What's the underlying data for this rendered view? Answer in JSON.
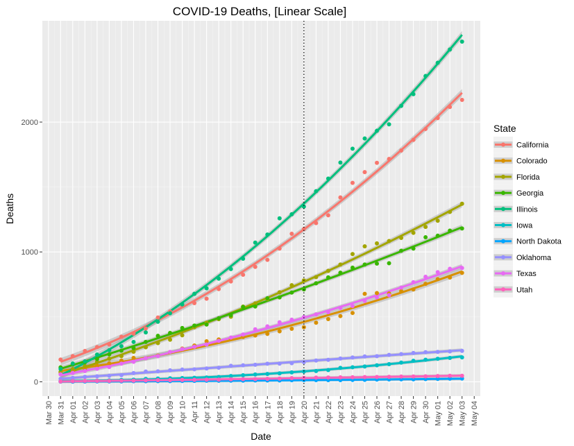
{
  "chart_data": {
    "type": "line",
    "title": "COVID-19 Deaths, [Linear Scale]",
    "xlabel": "Date",
    "ylabel": "Deaths",
    "x_ticks": [
      "Mar 30",
      "Mar 31",
      "Apr 01",
      "Apr 02",
      "Apr 03",
      "Apr 04",
      "Apr 05",
      "Apr 06",
      "Apr 07",
      "Apr 08",
      "Apr 09",
      "Apr 10",
      "Apr 11",
      "Apr 12",
      "Apr 13",
      "Apr 14",
      "Apr 15",
      "Apr 16",
      "Apr 17",
      "Apr 18",
      "Apr 19",
      "Apr 20",
      "Apr 21",
      "Apr 22",
      "Apr 23",
      "Apr 24",
      "Apr 25",
      "Apr 26",
      "Apr 27",
      "Apr 28",
      "Apr 29",
      "Apr 30",
      "May 01",
      "May 02",
      "May 03",
      "May 04"
    ],
    "x": [
      "Mar 31",
      "Apr 01",
      "Apr 02",
      "Apr 03",
      "Apr 04",
      "Apr 05",
      "Apr 06",
      "Apr 07",
      "Apr 08",
      "Apr 09",
      "Apr 10",
      "Apr 11",
      "Apr 12",
      "Apr 13",
      "Apr 14",
      "Apr 15",
      "Apr 16",
      "Apr 17",
      "Apr 18",
      "Apr 19",
      "Apr 20",
      "Apr 21",
      "Apr 22",
      "Apr 23",
      "Apr 24",
      "Apr 25",
      "Apr 26",
      "Apr 27",
      "Apr 28",
      "Apr 29",
      "Apr 30",
      "May 01",
      "May 02",
      "May 03"
    ],
    "xlim": [
      "Mar 30",
      "May 04"
    ],
    "y_ticks": [
      0,
      1000,
      2000
    ],
    "ylim": [
      -110,
      2780
    ],
    "vline": "Apr 20",
    "grid": true,
    "legend_title": "State",
    "legend_position": "right",
    "series": [
      {
        "name": "California",
        "color": "#F8766D",
        "values": [
          171,
          198,
          237,
          267,
          287,
          347,
          371,
          410,
          495,
          541,
          589,
          606,
          640,
          714,
          773,
          824,
          885,
          939,
          1026,
          1140,
          1177,
          1222,
          1282,
          1420,
          1532,
          1615,
          1686,
          1716,
          1781,
          1863,
          1947,
          2031,
          2116,
          2171
        ]
      },
      {
        "name": "Colorado",
        "color": "#D89000",
        "values": [
          69,
          82,
          97,
          124,
          142,
          163,
          184,
          181,
          202,
          228,
          256,
          279,
          312,
          326,
          331,
          345,
          357,
          369,
          389,
          408,
          420,
          455,
          483,
          506,
          530,
          677,
          683,
          680,
          698,
          711,
          754,
          790,
          803,
          839
        ]
      },
      {
        "name": "Florida",
        "color": "#A3A500",
        "values": [
          77,
          98,
          120,
          154,
          178,
          198,
          231,
          266,
          298,
          324,
          358,
          420,
          455,
          482,
          501,
          579,
          604,
          637,
          689,
          744,
          781,
          806,
          854,
          903,
          984,
          1043,
          1066,
          1084,
          1108,
          1147,
          1193,
          1240,
          1308,
          1371
        ]
      },
      {
        "name": "Georgia",
        "color": "#39B600",
        "values": [
          111,
          133,
          150,
          176,
          211,
          240,
          259,
          307,
          354,
          376,
          414,
          433,
          441,
          489,
          513,
          576,
          580,
          643,
          650,
          687,
          711,
          759,
          804,
          840,
          879,
          903,
          910,
          913,
          1009,
          1026,
          1113,
          1125,
          1164,
          1181
        ]
      },
      {
        "name": "Illinois",
        "color": "#00BF7D",
        "values": [
          99,
          141,
          157,
          210,
          243,
          274,
          307,
          380,
          462,
          528,
          596,
          677,
          720,
          794,
          868,
          948,
          1072,
          1134,
          1259,
          1290,
          1349,
          1468,
          1565,
          1688,
          1795,
          1874,
          1933,
          1983,
          2125,
          2215,
          2355,
          2457,
          2559,
          2620
        ]
      },
      {
        "name": "Iowa",
        "color": "#00BFC4",
        "values": [
          4,
          6,
          7,
          9,
          11,
          14,
          16,
          22,
          25,
          27,
          29,
          31,
          33,
          37,
          44,
          50,
          56,
          60,
          65,
          72,
          79,
          83,
          90,
          107,
          112,
          118,
          127,
          136,
          148,
          162,
          170,
          177,
          184,
          188
        ]
      },
      {
        "name": "North Dakota",
        "color": "#00A5FF",
        "values": [
          1,
          1,
          2,
          3,
          3,
          3,
          4,
          4,
          5,
          5,
          6,
          7,
          8,
          8,
          9,
          9,
          10,
          10,
          10,
          12,
          13,
          13,
          13,
          13,
          14,
          15,
          17,
          18,
          19,
          19,
          21,
          22,
          24,
          25
        ]
      },
      {
        "name": "Oklahoma",
        "color": "#9590FF",
        "values": [
          23,
          30,
          38,
          42,
          46,
          51,
          67,
          79,
          80,
          88,
          94,
          96,
          102,
          108,
          123,
          127,
          131,
          139,
          140,
          143,
          152,
          164,
          169,
          179,
          187,
          195,
          197,
          207,
          213,
          222,
          228,
          230,
          234,
          238
        ]
      },
      {
        "name": "Texas",
        "color": "#E76BF3",
        "values": [
          57,
          68,
          83,
          100,
          114,
          140,
          154,
          181,
          198,
          230,
          252,
          270,
          287,
          315,
          341,
          364,
          404,
          427,
          458,
          478,
          498,
          519,
          536,
          569,
          584,
          623,
          650,
          667,
          725,
          767,
          809,
          844,
          870,
          876
        ]
      },
      {
        "name": "Utah",
        "color": "#FF62BC",
        "values": [
          2,
          5,
          7,
          7,
          7,
          8,
          9,
          11,
          12,
          13,
          14,
          15,
          16,
          17,
          19,
          20,
          21,
          23,
          25,
          28,
          30,
          32,
          33,
          34,
          35,
          36,
          37,
          38,
          40,
          41,
          42,
          44,
          46,
          46
        ]
      }
    ]
  }
}
